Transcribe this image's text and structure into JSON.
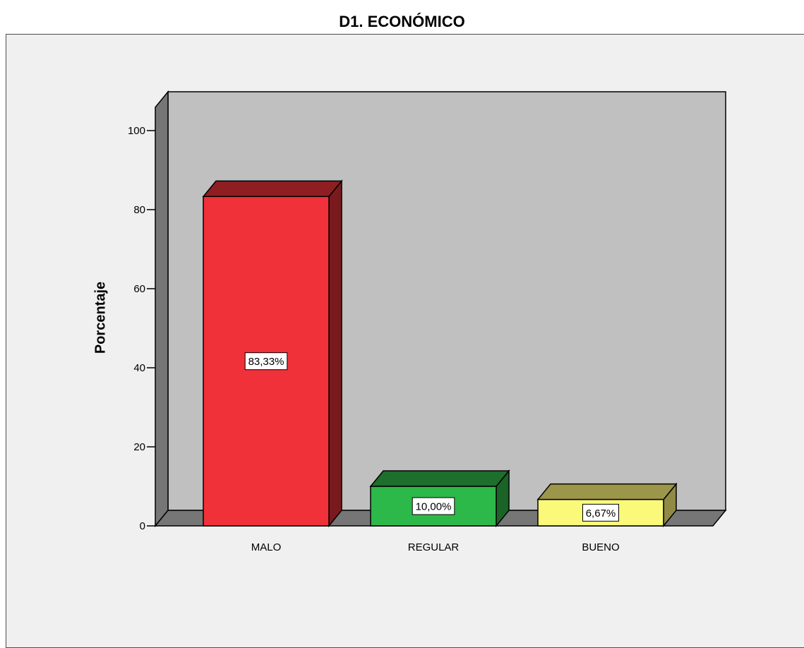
{
  "chart_data": {
    "type": "bar",
    "title": "D1. ECONÓMICO",
    "xlabel": "",
    "ylabel": "Porcentaje",
    "ylim": [
      0,
      100
    ],
    "yticks": [
      0,
      20,
      40,
      60,
      80,
      100
    ],
    "categories": [
      "MALO",
      "REGULAR",
      "BUENO"
    ],
    "values": [
      83.33,
      10.0,
      6.67
    ],
    "data_labels": [
      "83,33%",
      "10,00%",
      "6,67%"
    ],
    "colors": [
      {
        "front": "#f0313a",
        "top": "#8e1e22",
        "side": "#7a1a1e"
      },
      {
        "front": "#2db84a",
        "top": "#1e6e2c",
        "side": "#1a6428"
      },
      {
        "front": "#fbf97a",
        "top": "#9c964a",
        "side": "#908a44"
      }
    ],
    "wall_color": "#c0c0c0",
    "floor_color": "#767676",
    "side_wall_color": "#767676",
    "grid": false,
    "legend": "none"
  }
}
